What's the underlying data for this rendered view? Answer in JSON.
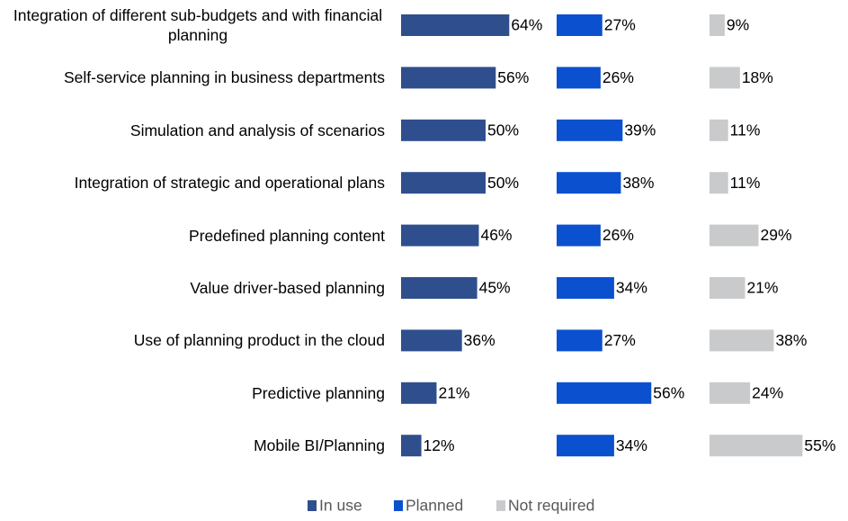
{
  "chart_data": {
    "type": "bar",
    "orientation": "horizontal",
    "categories": [
      "Integration of different sub-budgets and with financial planning",
      "Self-service planning in business departments",
      "Simulation and analysis of scenarios",
      "Integration of strategic and operational plans",
      "Predefined planning content",
      "Value driver-based planning",
      "Use of planning product in the cloud",
      "Predictive planning",
      "Mobile BI/Planning"
    ],
    "series": [
      {
        "name": "In use",
        "color": "#2f4e8e",
        "values": [
          64,
          56,
          50,
          50,
          46,
          45,
          36,
          21,
          12
        ],
        "value_labels": [
          "64%",
          "56%",
          "50%",
          "50%",
          "46%",
          "45%",
          "36%",
          "21%",
          "12%"
        ]
      },
      {
        "name": "Planned",
        "color": "#0b50cf",
        "values": [
          27,
          26,
          39,
          38,
          26,
          34,
          27,
          56,
          34
        ],
        "value_labels": [
          "27%",
          "26%",
          "39%",
          "38%",
          "26%",
          "34%",
          "27%",
          "56%",
          "34%"
        ]
      },
      {
        "name": "Not required",
        "color": "#c9cacc",
        "values": [
          9,
          18,
          11,
          11,
          29,
          21,
          38,
          24,
          55
        ],
        "value_labels": [
          "9%",
          "18%",
          "11%",
          "11%",
          "29%",
          "21%",
          "38%",
          "24%",
          "55%"
        ]
      }
    ],
    "legend": "bottom"
  }
}
